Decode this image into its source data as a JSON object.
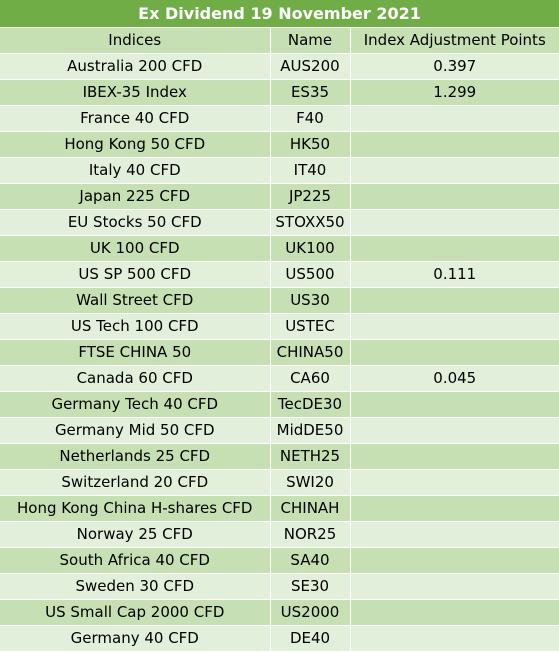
{
  "title": "Ex Dividend 19 November 2021",
  "columns": [
    "Indices",
    "Name",
    "Index Adjustment Points"
  ],
  "colors": {
    "title_bg": "#70ad47",
    "row_light": "#e2efda",
    "row_medium": "#c6e0b4"
  },
  "rows": [
    {
      "index": "Australia 200 CFD",
      "name": "AUS200",
      "points": "0.397"
    },
    {
      "index": "IBEX-35 Index",
      "name": "ES35",
      "points": "1.299"
    },
    {
      "index": "France 40 CFD",
      "name": "F40",
      "points": ""
    },
    {
      "index": "Hong Kong 50 CFD",
      "name": "HK50",
      "points": ""
    },
    {
      "index": "Italy 40 CFD",
      "name": "IT40",
      "points": ""
    },
    {
      "index": "Japan 225 CFD",
      "name": "JP225",
      "points": ""
    },
    {
      "index": "EU Stocks 50 CFD",
      "name": "STOXX50",
      "points": ""
    },
    {
      "index": "UK 100 CFD",
      "name": "UK100",
      "points": ""
    },
    {
      "index": "US SP 500 CFD",
      "name": "US500",
      "points": "0.111"
    },
    {
      "index": "Wall Street CFD",
      "name": "US30",
      "points": ""
    },
    {
      "index": "US Tech 100 CFD",
      "name": "USTEC",
      "points": ""
    },
    {
      "index": "FTSE CHINA 50",
      "name": "CHINA50",
      "points": ""
    },
    {
      "index": "Canada 60 CFD",
      "name": "CA60",
      "points": "0.045"
    },
    {
      "index": "Germany Tech 40 CFD",
      "name": "TecDE30",
      "points": ""
    },
    {
      "index": "Germany Mid 50 CFD",
      "name": "MidDE50",
      "points": ""
    },
    {
      "index": "Netherlands 25 CFD",
      "name": "NETH25",
      "points": ""
    },
    {
      "index": "Switzerland 20 CFD",
      "name": "SWI20",
      "points": ""
    },
    {
      "index": "Hong Kong China H-shares CFD",
      "name": "CHINAH",
      "points": ""
    },
    {
      "index": "Norway 25 CFD",
      "name": "NOR25",
      "points": ""
    },
    {
      "index": "South Africa 40 CFD",
      "name": "SA40",
      "points": ""
    },
    {
      "index": "Sweden 30 CFD",
      "name": "SE30",
      "points": ""
    },
    {
      "index": "US Small Cap 2000 CFD",
      "name": "US2000",
      "points": ""
    },
    {
      "index": "Germany 40 CFD",
      "name": "DE40",
      "points": ""
    }
  ]
}
